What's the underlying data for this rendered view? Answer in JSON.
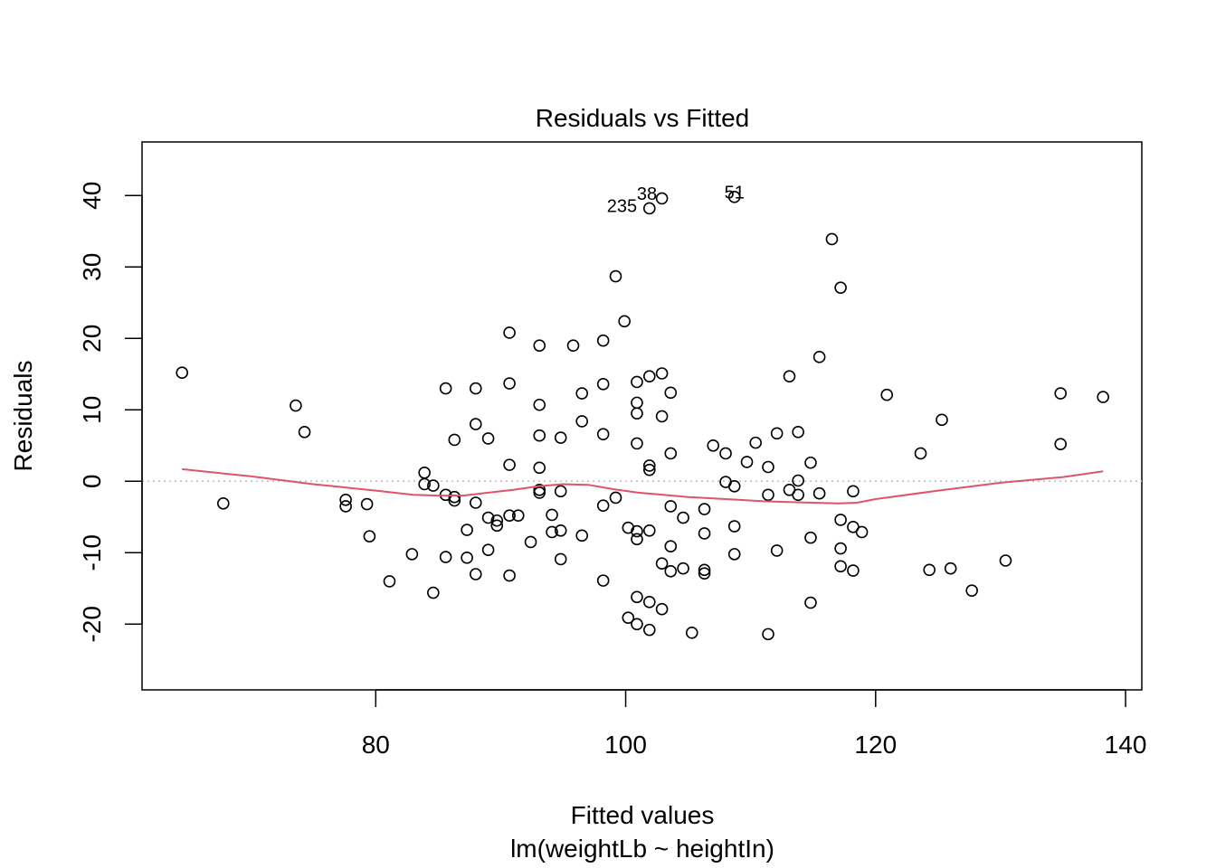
{
  "chart_data": {
    "type": "scatter",
    "title": "Residuals vs Fitted",
    "xlabel": "Fitted values",
    "subtitle": "lm(weightLb ~ heightIn)",
    "ylabel": "Residuals",
    "xlim": [
      61.3,
      141.3
    ],
    "ylim": [
      -29.2,
      47.5
    ],
    "xticks": [
      80,
      100,
      120,
      140
    ],
    "yticks": [
      -20,
      -10,
      0,
      10,
      20,
      30,
      40
    ],
    "grid": false,
    "reference_line": {
      "y": 0,
      "style": "dotted",
      "color": "#bebebe"
    },
    "smooth_color": "#df536b",
    "point_labels": [
      {
        "label": "38",
        "x": 101.7,
        "y": 40.3
      },
      {
        "label": "235",
        "x": 99.7,
        "y": 38.6
      },
      {
        "label": "51",
        "x": 108.7,
        "y": 40.5
      }
    ],
    "points": [
      [
        64.5,
        15.2
      ],
      [
        67.8,
        -3.1
      ],
      [
        73.6,
        10.6
      ],
      [
        74.3,
        6.9
      ],
      [
        77.6,
        -2.6
      ],
      [
        77.6,
        -3.5
      ],
      [
        79.3,
        -3.2
      ],
      [
        79.5,
        -7.7
      ],
      [
        81.1,
        -14.0
      ],
      [
        82.9,
        -10.2
      ],
      [
        83.9,
        1.2
      ],
      [
        83.9,
        -0.4
      ],
      [
        84.6,
        -0.6
      ],
      [
        84.6,
        -15.6
      ],
      [
        85.6,
        -1.9
      ],
      [
        85.6,
        -10.6
      ],
      [
        85.6,
        13.0
      ],
      [
        86.3,
        -2.2
      ],
      [
        86.3,
        -2.7
      ],
      [
        86.3,
        5.8
      ],
      [
        87.3,
        -6.8
      ],
      [
        87.3,
        -10.7
      ],
      [
        88.0,
        -3.0
      ],
      [
        88.0,
        -13.0
      ],
      [
        88.0,
        13.0
      ],
      [
        88.0,
        8.0
      ],
      [
        89.0,
        -5.1
      ],
      [
        89.0,
        -9.6
      ],
      [
        89.0,
        6.0
      ],
      [
        89.7,
        -5.5
      ],
      [
        89.7,
        -6.2
      ],
      [
        90.7,
        -4.8
      ],
      [
        90.7,
        -13.2
      ],
      [
        90.7,
        2.3
      ],
      [
        90.7,
        13.7
      ],
      [
        90.7,
        20.8
      ],
      [
        91.4,
        -4.8
      ],
      [
        92.4,
        -8.5
      ],
      [
        93.1,
        -1.2
      ],
      [
        93.1,
        -1.6
      ],
      [
        93.1,
        1.9
      ],
      [
        93.1,
        6.4
      ],
      [
        93.1,
        10.7
      ],
      [
        93.1,
        19.0
      ],
      [
        94.1,
        -4.7
      ],
      [
        94.1,
        -7.1
      ],
      [
        94.8,
        -1.4
      ],
      [
        94.8,
        -6.9
      ],
      [
        94.8,
        -10.9
      ],
      [
        94.8,
        6.1
      ],
      [
        95.8,
        19.0
      ],
      [
        96.5,
        -7.6
      ],
      [
        96.5,
        8.4
      ],
      [
        96.5,
        12.3
      ],
      [
        98.2,
        -3.4
      ],
      [
        98.2,
        -13.9
      ],
      [
        98.2,
        6.6
      ],
      [
        98.2,
        13.6
      ],
      [
        98.2,
        19.7
      ],
      [
        99.2,
        -2.3
      ],
      [
        99.2,
        28.7
      ],
      [
        99.9,
        22.4
      ],
      [
        100.2,
        -6.5
      ],
      [
        100.2,
        -19.1
      ],
      [
        100.9,
        -7.0
      ],
      [
        100.9,
        -8.1
      ],
      [
        100.9,
        -16.2
      ],
      [
        100.9,
        -20.0
      ],
      [
        100.9,
        5.3
      ],
      [
        100.9,
        9.5
      ],
      [
        100.9,
        11.0
      ],
      [
        100.9,
        13.9
      ],
      [
        101.9,
        -6.9
      ],
      [
        101.9,
        -16.9
      ],
      [
        101.9,
        -20.8
      ],
      [
        101.9,
        1.6
      ],
      [
        101.9,
        2.2
      ],
      [
        101.9,
        14.7
      ],
      [
        101.9,
        38.2
      ],
      [
        102.9,
        -11.5
      ],
      [
        102.9,
        -17.9
      ],
      [
        102.9,
        9.1
      ],
      [
        102.9,
        15.1
      ],
      [
        102.9,
        39.6
      ],
      [
        103.6,
        -3.5
      ],
      [
        103.6,
        -9.1
      ],
      [
        103.6,
        -12.6
      ],
      [
        103.6,
        3.9
      ],
      [
        103.6,
        12.4
      ],
      [
        104.6,
        -5.1
      ],
      [
        104.6,
        -12.2
      ],
      [
        105.3,
        -21.2
      ],
      [
        106.3,
        -3.9
      ],
      [
        106.3,
        -7.3
      ],
      [
        106.3,
        -12.4
      ],
      [
        106.3,
        -12.9
      ],
      [
        107.0,
        5.0
      ],
      [
        108.0,
        -0.1
      ],
      [
        108.0,
        3.9
      ],
      [
        108.7,
        -0.7
      ],
      [
        108.7,
        -6.3
      ],
      [
        108.7,
        -10.2
      ],
      [
        108.7,
        39.8
      ],
      [
        109.7,
        2.7
      ],
      [
        110.4,
        5.4
      ],
      [
        111.4,
        -1.9
      ],
      [
        111.4,
        -21.4
      ],
      [
        111.4,
        2.0
      ],
      [
        112.1,
        -9.7
      ],
      [
        112.1,
        6.7
      ],
      [
        113.1,
        -1.2
      ],
      [
        113.1,
        14.7
      ],
      [
        113.8,
        -1.9
      ],
      [
        113.8,
        0.1
      ],
      [
        113.8,
        6.9
      ],
      [
        114.8,
        -7.9
      ],
      [
        114.8,
        -17.0
      ],
      [
        114.8,
        2.6
      ],
      [
        115.5,
        -1.7
      ],
      [
        115.5,
        17.4
      ],
      [
        116.5,
        33.9
      ],
      [
        117.2,
        -5.4
      ],
      [
        117.2,
        -9.4
      ],
      [
        117.2,
        -11.9
      ],
      [
        117.2,
        27.1
      ],
      [
        118.2,
        -1.4
      ],
      [
        118.2,
        -6.4
      ],
      [
        118.2,
        -12.5
      ],
      [
        118.9,
        -7.1
      ],
      [
        120.9,
        12.1
      ],
      [
        123.6,
        3.9
      ],
      [
        124.3,
        -12.4
      ],
      [
        125.3,
        8.6
      ],
      [
        126.0,
        -12.2
      ],
      [
        127.7,
        -15.3
      ],
      [
        130.4,
        -11.1
      ],
      [
        134.8,
        5.2
      ],
      [
        134.8,
        12.3
      ],
      [
        138.2,
        11.8
      ]
    ],
    "smooth_line": [
      [
        64.5,
        1.7
      ],
      [
        70,
        0.7
      ],
      [
        75,
        -0.4
      ],
      [
        80,
        -1.3
      ],
      [
        83,
        -1.9
      ],
      [
        85,
        -2.0
      ],
      [
        87,
        -2.0
      ],
      [
        89,
        -1.6
      ],
      [
        91,
        -1.2
      ],
      [
        93,
        -0.7
      ],
      [
        95,
        -0.4
      ],
      [
        97,
        -0.5
      ],
      [
        99,
        -1.1
      ],
      [
        101,
        -1.6
      ],
      [
        103,
        -1.9
      ],
      [
        105,
        -2.2
      ],
      [
        107,
        -2.4
      ],
      [
        109,
        -2.6
      ],
      [
        111,
        -2.8
      ],
      [
        113,
        -2.9
      ],
      [
        115,
        -3.0
      ],
      [
        117,
        -3.1
      ],
      [
        118.5,
        -3.0
      ],
      [
        120,
        -2.5
      ],
      [
        125,
        -1.3
      ],
      [
        130,
        -0.2
      ],
      [
        135,
        0.6
      ],
      [
        138.2,
        1.4
      ]
    ]
  }
}
